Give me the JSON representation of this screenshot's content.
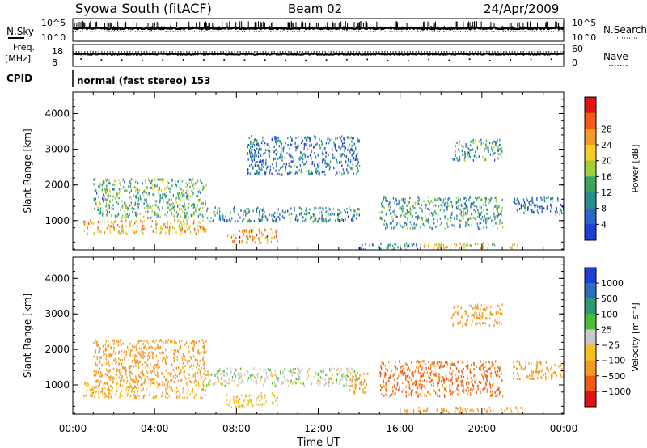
{
  "header": {
    "station": "Syowa South (fitACF)",
    "beam": "Beam 02",
    "date": "24/Apr/2009"
  },
  "top_panels": {
    "nsky_label": "N.Sky",
    "nsearch_label": "N.Search",
    "freq_label_1": "Freq.",
    "freq_label_2": "[MHz]",
    "nave_label": "Nave",
    "cpid_label": "CPID",
    "cpid_value": "normal (fast stereo) 153",
    "noise_ticks": [
      "10^5",
      "10^0"
    ],
    "freq_ticks": [
      "18",
      "8"
    ],
    "nave_ticks": [
      "60",
      "0"
    ]
  },
  "chart_data": [
    {
      "type": "heatmap",
      "name": "power",
      "xlabel": "Time UT",
      "ylabel": "Slant Range [km]",
      "xlim": [
        0,
        24
      ],
      "ylim": [
        180,
        4600
      ],
      "x_ticks": [
        "00:00",
        "04:00",
        "08:00",
        "12:00",
        "16:00",
        "20:00",
        "00:00"
      ],
      "y_ticks": [
        1000,
        2000,
        3000,
        4000
      ],
      "colorbar": {
        "label": "Power [dB]",
        "ticks": [
          4,
          8,
          12,
          16,
          20,
          24,
          28
        ],
        "range": [
          0,
          30
        ],
        "colors": [
          "#1f3fd6",
          "#2b66c8",
          "#2a8f8a",
          "#3aa660",
          "#9fcf3a",
          "#f3cf22",
          "#f59a22",
          "#f25a16",
          "#e01212"
        ]
      },
      "regions": [
        {
          "t": [
            0.5,
            6.5
          ],
          "r": [
            650,
            1050
          ],
          "power": 20
        },
        {
          "t": [
            1.0,
            6.5
          ],
          "r": [
            1100,
            2200
          ],
          "power": 12
        },
        {
          "t": [
            6.5,
            14.0
          ],
          "r": [
            1000,
            1400
          ],
          "power": 8
        },
        {
          "t": [
            7.5,
            10.0
          ],
          "r": [
            400,
            800
          ],
          "power": 22
        },
        {
          "t": [
            14.0,
            17.0
          ],
          "r": [
            200,
            400
          ],
          "power": 8
        },
        {
          "t": [
            17.0,
            22.0
          ],
          "r": [
            250,
            400
          ],
          "power": 18
        },
        {
          "t": [
            15.0,
            21.0
          ],
          "r": [
            800,
            1700
          ],
          "power": 10
        },
        {
          "t": [
            8.5,
            14.0
          ],
          "r": [
            2300,
            3400
          ],
          "power": 6
        },
        {
          "t": [
            18.5,
            21.0
          ],
          "r": [
            2700,
            3300
          ],
          "power": 10
        },
        {
          "t": [
            21.5,
            24.0
          ],
          "r": [
            1200,
            1700
          ],
          "power": 6
        }
      ]
    },
    {
      "type": "heatmap",
      "name": "velocity",
      "xlabel": "Time UT",
      "ylabel": "Slant Range [km]",
      "xlim": [
        0,
        24
      ],
      "ylim": [
        180,
        4600
      ],
      "x_ticks": [
        "00:00",
        "04:00",
        "08:00",
        "12:00",
        "16:00",
        "20:00",
        "00:00"
      ],
      "y_ticks": [
        1000,
        2000,
        3000,
        4000
      ],
      "colorbar": {
        "label": "Velocity [m s⁻¹]",
        "ticks": [
          "1000",
          "500",
          "100",
          "25",
          "−25",
          "−100",
          "−500",
          "−1000"
        ],
        "colors": [
          "#1f3fd6",
          "#2a6fbf",
          "#2e9a70",
          "#4cbc3a",
          "#c8c8c8",
          "#f3c21e",
          "#f59a22",
          "#f05a14",
          "#e01212"
        ]
      },
      "regions": [
        {
          "t": [
            0.5,
            6.5
          ],
          "r": [
            650,
            1100
          ],
          "velocity": -100
        },
        {
          "t": [
            1.0,
            6.5
          ],
          "r": [
            1100,
            2300
          ],
          "velocity": -300
        },
        {
          "t": [
            6.5,
            14.0
          ],
          "r": [
            1000,
            1500
          ],
          "velocity": 0
        },
        {
          "t": [
            7.5,
            10.0
          ],
          "r": [
            400,
            800
          ],
          "velocity": -50
        },
        {
          "t": [
            13.5,
            14.5
          ],
          "r": [
            800,
            1400
          ],
          "velocity": -300
        },
        {
          "t": [
            15.0,
            21.0
          ],
          "r": [
            700,
            1700
          ],
          "velocity": -600
        },
        {
          "t": [
            16.0,
            22.0
          ],
          "r": [
            250,
            400
          ],
          "velocity": -200
        },
        {
          "t": [
            18.5,
            21.0
          ],
          "r": [
            2700,
            3300
          ],
          "velocity": -300
        },
        {
          "t": [
            21.5,
            24.0
          ],
          "r": [
            1200,
            1700
          ],
          "velocity": -300
        }
      ]
    }
  ]
}
